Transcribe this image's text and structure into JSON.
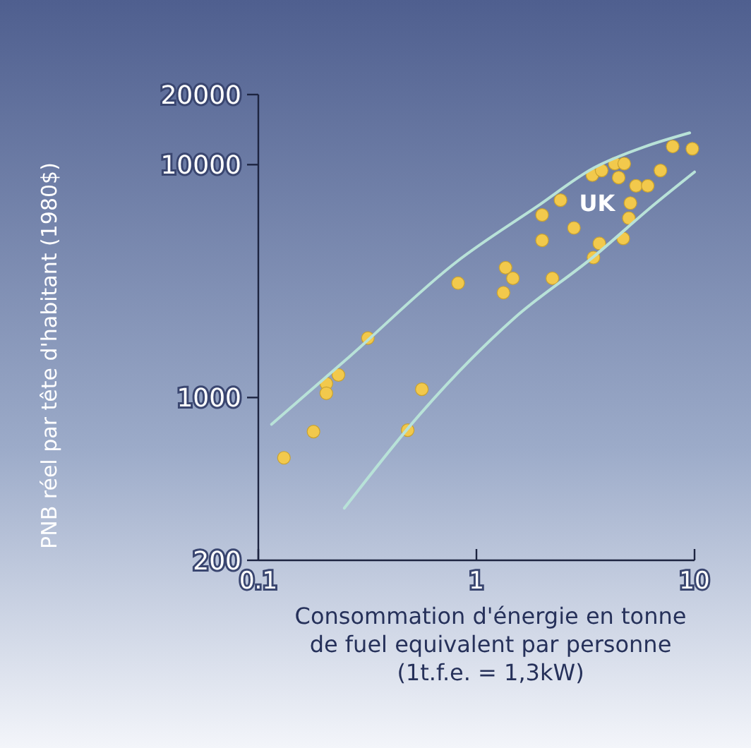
{
  "chart_data": {
    "type": "scatter",
    "xlabel": "Consommation d'énergie en tonne\nde fuel equivalent par personne\n(1t.f.e. = 1,3kW)",
    "ylabel": "PNB réel par tête d'habitant (1980$)",
    "log": "xy",
    "xlim": [
      0.1,
      10
    ],
    "ylim": [
      200,
      20000
    ],
    "xticks": [
      0.1,
      1,
      10
    ],
    "yticks": [
      200,
      1000,
      10000,
      20000
    ],
    "grid": false,
    "marker": "circle",
    "annotations": [
      "UK"
    ],
    "series": [
      {
        "color": "#f2c94c",
        "x": [
          0.131,
          0.179,
          0.205,
          0.205,
          0.233,
          0.318,
          0.562,
          0.484,
          0.824,
          1.36,
          1.47,
          1.33,
          2.23,
          2.0,
          2.0,
          2.43,
          2.8,
          3.44,
          3.66,
          3.4,
          3.75,
          4.31,
          4.76,
          4.49,
          5.39,
          6.1,
          5.08,
          5.0,
          4.71,
          6.98,
          7.94,
          9.77
        ],
        "values": [
          551,
          714,
          1148,
          1043,
          1250,
          1800,
          1085,
          724,
          3100,
          3610,
          3250,
          2820,
          3250,
          4730,
          6080,
          7040,
          5350,
          3990,
          4590,
          9020,
          9440,
          10100,
          10100,
          8800,
          8110,
          8110,
          6840,
          5890,
          4820,
          9440,
          11970,
          11700
        ]
      },
      {
        "type": "line",
        "color": "#b8e2d8",
        "marker": "none",
        "x": [
          0.115,
          0.26,
          0.815,
          1.9,
          3.45,
          5.95,
          9.5
        ],
        "values": [
          767,
          1490,
          3840,
          6620,
          9680,
          11970,
          13700
        ]
      },
      {
        "type": "line",
        "color": "#b8e2d8",
        "marker": "none",
        "x": [
          0.248,
          0.548,
          1.48,
          3.45,
          6.58,
          10
        ],
        "values": [
          335,
          843,
          2180,
          4030,
          6780,
          9300
        ]
      }
    ]
  }
}
